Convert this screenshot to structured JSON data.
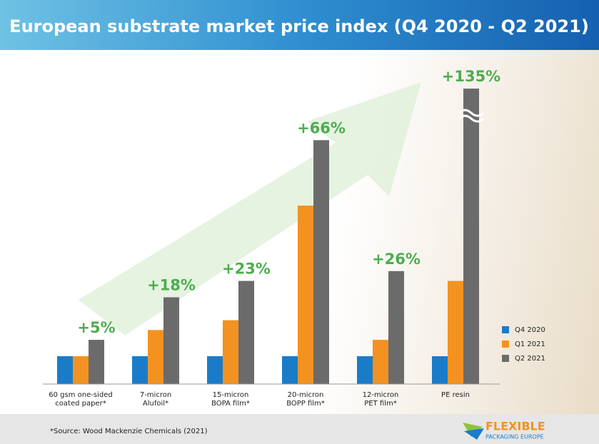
{
  "chart_data": {
    "type": "bar",
    "title": "European substrate market price index (Q4 2020 - Q2 2021)",
    "categories": [
      "60 gsm one-sided\ncoated paper*",
      "7-micron\nAlufoil*",
      "15-micron\nBOPA film*",
      "20-micron\nBOPP film*",
      "12-micron\nPET film*",
      "PE resin"
    ],
    "series": [
      {
        "name": "Q4 2020",
        "color": "#1a7cc9",
        "values": [
          0,
          0,
          0,
          0,
          0,
          0
        ]
      },
      {
        "name": "Q1 2021",
        "color": "#f39220",
        "values": [
          0,
          8,
          11,
          46,
          5,
          23
        ]
      },
      {
        "name": "Q2 2021",
        "color": "#6b6b6b",
        "values": [
          5,
          18,
          23,
          66,
          26,
          135
        ],
        "value_labels": [
          "+5%",
          "+18%",
          "+23%",
          "+66%",
          "+26%",
          "+135%"
        ]
      }
    ],
    "ylim": [
      -8.5,
      70
    ],
    "axis_break": true,
    "legend": "lower right",
    "source": "*Source: Wood Mackenzie Chemicals (2021)",
    "logo": {
      "name": "FLEXIBLE",
      "sub": "PACKAGING EUROPE"
    }
  }
}
